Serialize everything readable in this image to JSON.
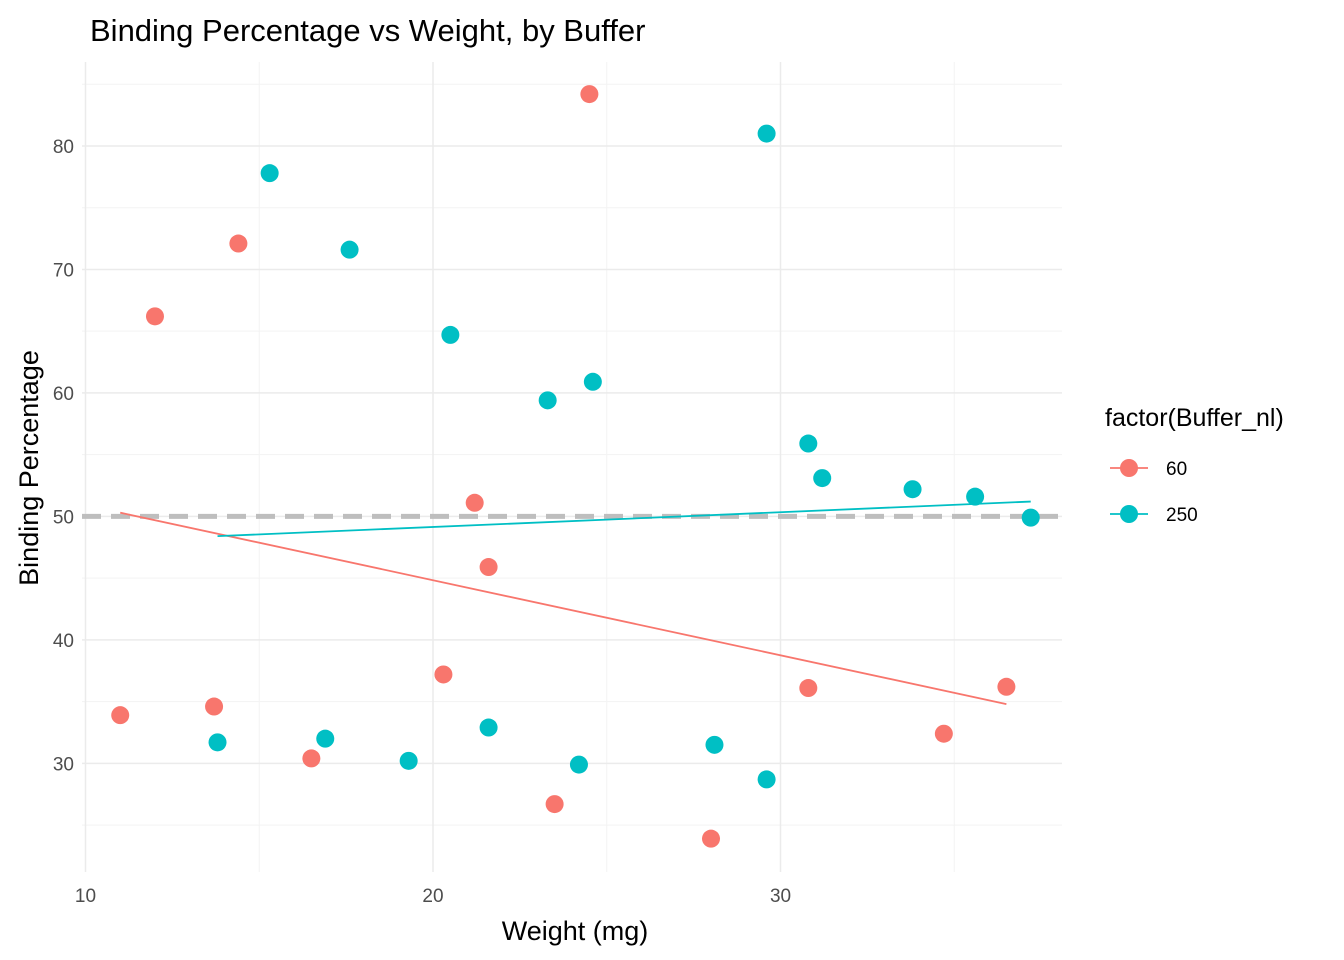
{
  "chart_data": {
    "type": "scatter",
    "title": "Binding Percentage vs Weight, by Buffer",
    "xlabel": "Weight (mg)",
    "ylabel": "Binding Percentage",
    "xlim": [
      9.9,
      38.1
    ],
    "ylim": [
      21.2,
      86.8
    ],
    "x_ticks": [
      10,
      20,
      30
    ],
    "y_ticks": [
      30,
      40,
      50,
      60,
      70,
      80
    ],
    "grid": true,
    "legend": {
      "title": "factor(Buffer_nl)",
      "position": "right"
    },
    "reference_line": {
      "y": 50,
      "style": "dashed",
      "color": "#bebebe"
    },
    "series": [
      {
        "name": "60",
        "color": "#F8766D",
        "points": [
          [
            11.0,
            33.9
          ],
          [
            12.0,
            66.2
          ],
          [
            13.7,
            34.6
          ],
          [
            14.4,
            72.1
          ],
          [
            16.5,
            30.4
          ],
          [
            20.3,
            37.2
          ],
          [
            21.2,
            51.1
          ],
          [
            21.6,
            45.9
          ],
          [
            23.5,
            26.7
          ],
          [
            24.5,
            84.2
          ],
          [
            28.0,
            23.9
          ],
          [
            30.8,
            36.1
          ],
          [
            34.7,
            32.4
          ],
          [
            36.5,
            36.2
          ]
        ],
        "trend": {
          "x": [
            11.0,
            36.5
          ],
          "y": [
            50.3,
            34.8
          ]
        }
      },
      {
        "name": "250",
        "color": "#00BFC4",
        "points": [
          [
            13.8,
            31.7
          ],
          [
            15.3,
            77.8
          ],
          [
            16.9,
            32.0
          ],
          [
            17.6,
            71.6
          ],
          [
            19.3,
            30.2
          ],
          [
            20.5,
            64.7
          ],
          [
            21.6,
            32.9
          ],
          [
            23.3,
            59.4
          ],
          [
            24.2,
            29.9
          ],
          [
            24.6,
            60.9
          ],
          [
            28.1,
            31.5
          ],
          [
            29.6,
            81.0
          ],
          [
            29.6,
            28.7
          ],
          [
            30.8,
            55.9
          ],
          [
            31.2,
            53.1
          ],
          [
            33.8,
            52.2
          ],
          [
            35.6,
            51.6
          ],
          [
            37.2,
            49.9
          ]
        ],
        "trend": {
          "x": [
            13.8,
            37.2
          ],
          "y": [
            48.4,
            51.2
          ]
        }
      }
    ]
  }
}
